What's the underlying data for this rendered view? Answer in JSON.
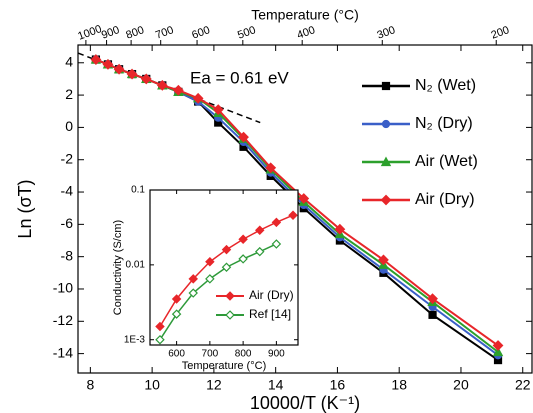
{
  "chart_data": [
    {
      "type": "line",
      "xlabel": "10000/T (K⁻¹)",
      "ylabel": "Ln (σT)",
      "x2label": "Temperature (°C)",
      "xlim": [
        7.6,
        22.3
      ],
      "ylim": [
        -15.2,
        5.1
      ],
      "xticks": [
        8,
        10,
        12,
        14,
        16,
        18,
        20,
        22
      ],
      "yticks": [
        4,
        2,
        0,
        -2,
        -4,
        -6,
        -8,
        -10,
        -12,
        -14
      ],
      "x2ticks": [
        1000,
        900,
        800,
        700,
        600,
        500,
        400,
        300,
        200
      ],
      "x2_transform": "reciprocal_kelvin",
      "x": [
        8.18,
        8.57,
        8.93,
        9.35,
        9.81,
        10.33,
        10.85,
        11.49,
        12.14,
        12.96,
        13.84,
        14.91,
        16.08,
        17.49,
        19.08,
        21.2
      ],
      "series": [
        {
          "name": "N₂ (Wet)",
          "color": "#000000",
          "marker": "square",
          "filled": true,
          "values": [
            4.2,
            3.9,
            3.6,
            3.3,
            3.0,
            2.6,
            2.2,
            1.6,
            0.3,
            -1.2,
            -3.0,
            -5.0,
            -7.0,
            -9.0,
            -11.6,
            -14.4
          ]
        },
        {
          "name": "N₂ (Dry)",
          "color": "#3a5fc8",
          "marker": "circle",
          "filled": true,
          "values": [
            4.2,
            3.9,
            3.6,
            3.3,
            3.0,
            2.6,
            2.2,
            1.6,
            0.6,
            -0.9,
            -2.8,
            -4.8,
            -6.8,
            -8.8,
            -11.1,
            -14.1
          ]
        },
        {
          "name": "Air (Wet)",
          "color": "#2ca02c",
          "marker": "triangle",
          "filled": true,
          "values": [
            4.2,
            3.9,
            3.6,
            3.3,
            3.0,
            2.6,
            2.2,
            1.8,
            0.9,
            -0.7,
            -2.6,
            -4.6,
            -6.6,
            -8.5,
            -10.8,
            -13.9
          ]
        },
        {
          "name": "Air (Dry)",
          "color": "#e8262a",
          "marker": "diamond",
          "filled": true,
          "values": [
            4.2,
            3.9,
            3.6,
            3.3,
            3.0,
            2.6,
            2.3,
            1.8,
            1.1,
            -0.6,
            -2.5,
            -4.4,
            -6.3,
            -8.2,
            -10.6,
            -13.5
          ]
        }
      ],
      "fit_line": {
        "x": [
          7.6,
          13.5
        ],
        "y": [
          4.6,
          0.3
        ],
        "label": "Ea = 0.61 eV"
      }
    },
    {
      "type": "line",
      "xlabel": "Temperature (°C)",
      "ylabel": "Conductivity (S/cm)",
      "xlim": [
        520,
        965
      ],
      "ylim": [
        0.00085,
        0.1
      ],
      "log_y": true,
      "xticks": [
        600,
        700,
        800,
        900
      ],
      "yticks": [
        {
          "value": 0.001,
          "label": "1E-3"
        },
        0.01,
        0.1
      ],
      "series": [
        {
          "name": "Air (Dry)",
          "color": "#e8262a",
          "marker": "diamond",
          "filled": true,
          "x": [
            550,
            600,
            650,
            700,
            750,
            800,
            850,
            900,
            950
          ],
          "values": [
            0.0015,
            0.0035,
            0.0065,
            0.011,
            0.016,
            0.022,
            0.029,
            0.037,
            0.046
          ]
        },
        {
          "name": "Ref [14]",
          "color": "#2e9a3a",
          "marker": "diamond",
          "filled": false,
          "x": [
            550,
            600,
            650,
            700,
            750,
            800,
            850,
            900
          ],
          "values": [
            0.001,
            0.0022,
            0.0042,
            0.0065,
            0.0093,
            0.012,
            0.015,
            0.019
          ]
        }
      ]
    }
  ]
}
